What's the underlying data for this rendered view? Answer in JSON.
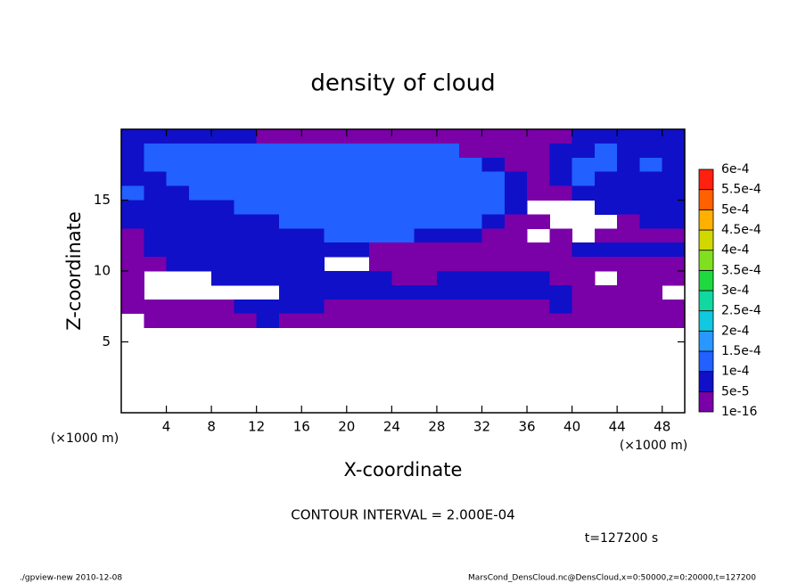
{
  "chart_data": {
    "type": "contour",
    "title": "density of cloud",
    "x_label": "X-coordinate",
    "y_label": "Z-coordinate",
    "x_unit": "(×1000 m)",
    "y_unit": "(×1000 m)",
    "xlim": [
      0,
      50
    ],
    "ylim": [
      0,
      20
    ],
    "xticks": [
      4,
      8,
      12,
      16,
      20,
      24,
      28,
      32,
      36,
      40,
      44,
      48
    ],
    "yticks": [
      5,
      10,
      15
    ],
    "levels": [
      {
        "value": 1e-16,
        "label": "1e-16"
      },
      {
        "value": 5e-05,
        "label": "5e-5"
      },
      {
        "value": 0.0001,
        "label": "1e-4"
      },
      {
        "value": 0.00015,
        "label": "1.5e-4"
      },
      {
        "value": 0.0002,
        "label": "2e-4"
      },
      {
        "value": 0.00025,
        "label": "2.5e-4"
      },
      {
        "value": 0.0003,
        "label": "3e-4"
      },
      {
        "value": 0.00035,
        "label": "3.5e-4"
      },
      {
        "value": 0.0004,
        "label": "4e-4"
      },
      {
        "value": 0.00045,
        "label": "4.5e-4"
      },
      {
        "value": 0.0005,
        "label": "5e-4"
      },
      {
        "value": 0.00055,
        "label": "5.5e-4"
      },
      {
        "value": 0.0006,
        "label": "6e-4"
      }
    ],
    "colors": [
      "#7a00a8",
      "#1010c8",
      "#2260ff",
      "#2898ff",
      "#10c8e0",
      "#10d8a0",
      "#20d840",
      "#80e020",
      "#d0d800",
      "#ffb000",
      "#ff6000",
      "#ff2010"
    ],
    "top_color": "#ff8c8c",
    "x": [
      1,
      3,
      5,
      7,
      9,
      11,
      13,
      15,
      17,
      19,
      21,
      23,
      25,
      27,
      29,
      31,
      33,
      35,
      37,
      39,
      41,
      43,
      45,
      47,
      49
    ],
    "z": [
      19.5,
      18.5,
      17.5,
      16.5,
      15.5,
      14.5,
      13.5,
      12.5,
      11.5,
      10.5,
      9.5,
      8.5,
      7.5,
      6.5
    ],
    "values": [
      [
        7e-05,
        7e-05,
        7e-05,
        7e-05,
        7e-05,
        7e-05,
        3e-05,
        3e-05,
        3e-05,
        3e-05,
        3e-05,
        3e-05,
        3e-05,
        3e-05,
        3e-05,
        3e-05,
        3e-05,
        3e-05,
        3e-05,
        3e-05,
        7e-05,
        7e-05,
        7e-05,
        7e-05,
        7e-05
      ],
      [
        7e-05,
        0.00012,
        0.00012,
        0.00012,
        0.00012,
        0.00012,
        0.00012,
        0.00012,
        0.00012,
        0.00012,
        0.00012,
        0.00012,
        0.00012,
        0.00012,
        0.00012,
        3e-05,
        3e-05,
        3e-05,
        3e-05,
        7e-05,
        7e-05,
        0.00012,
        7e-05,
        7e-05,
        7e-05
      ],
      [
        7e-05,
        0.00012,
        0.00012,
        0.00012,
        0.00012,
        0.00012,
        0.00012,
        0.00012,
        0.00012,
        0.00012,
        0.00012,
        0.00012,
        0.00012,
        0.00012,
        0.00012,
        0.00012,
        7e-05,
        3e-05,
        3e-05,
        7e-05,
        0.00012,
        0.00012,
        7e-05,
        0.00012,
        7e-05
      ],
      [
        7e-05,
        7e-05,
        0.00012,
        0.00012,
        0.00012,
        0.00012,
        0.00012,
        0.00012,
        0.00012,
        0.00012,
        0.00012,
        0.00012,
        0.00012,
        0.00012,
        0.00012,
        0.00012,
        0.00012,
        7e-05,
        3e-05,
        7e-05,
        0.00012,
        7e-05,
        7e-05,
        7e-05,
        7e-05
      ],
      [
        0.00012,
        7e-05,
        7e-05,
        0.00012,
        0.00012,
        0.00012,
        0.00012,
        0.00012,
        0.00012,
        0.00012,
        0.00012,
        0.00012,
        0.00012,
        0.00012,
        0.00012,
        0.00012,
        0.00012,
        7e-05,
        3e-05,
        3e-05,
        7e-05,
        7e-05,
        7e-05,
        7e-05,
        7e-05
      ],
      [
        7e-05,
        7e-05,
        7e-05,
        7e-05,
        7e-05,
        0.00012,
        0.00012,
        0.00012,
        0.00012,
        0.00012,
        0.00012,
        0.00012,
        0.00012,
        0.00012,
        0.00012,
        0.00012,
        0.00012,
        7e-05,
        null,
        null,
        null,
        7e-05,
        7e-05,
        7e-05,
        7e-05
      ],
      [
        7e-05,
        7e-05,
        7e-05,
        7e-05,
        7e-05,
        7e-05,
        7e-05,
        0.00012,
        0.00012,
        0.00012,
        0.00012,
        0.00012,
        0.00012,
        0.00012,
        0.00012,
        0.00012,
        7e-05,
        3e-05,
        3e-05,
        null,
        null,
        null,
        3e-05,
        7e-05,
        7e-05
      ],
      [
        3e-05,
        7e-05,
        7e-05,
        7e-05,
        7e-05,
        7e-05,
        7e-05,
        7e-05,
        7e-05,
        0.00012,
        0.00012,
        0.00012,
        0.00012,
        7e-05,
        7e-05,
        7e-05,
        3e-05,
        3e-05,
        null,
        3e-05,
        null,
        3e-05,
        3e-05,
        3e-05,
        3e-05
      ],
      [
        3e-05,
        7e-05,
        7e-05,
        7e-05,
        7e-05,
        7e-05,
        7e-05,
        7e-05,
        7e-05,
        7e-05,
        7e-05,
        3e-05,
        3e-05,
        3e-05,
        3e-05,
        3e-05,
        3e-05,
        3e-05,
        3e-05,
        3e-05,
        7e-05,
        7e-05,
        7e-05,
        7e-05,
        7e-05
      ],
      [
        3e-05,
        3e-05,
        7e-05,
        7e-05,
        7e-05,
        7e-05,
        7e-05,
        7e-05,
        7e-05,
        null,
        null,
        3e-05,
        3e-05,
        3e-05,
        3e-05,
        3e-05,
        3e-05,
        3e-05,
        3e-05,
        3e-05,
        3e-05,
        3e-05,
        3e-05,
        3e-05,
        3e-05
      ],
      [
        3e-05,
        null,
        null,
        null,
        7e-05,
        7e-05,
        7e-05,
        7e-05,
        7e-05,
        7e-05,
        7e-05,
        7e-05,
        3e-05,
        3e-05,
        7e-05,
        7e-05,
        7e-05,
        7e-05,
        7e-05,
        3e-05,
        3e-05,
        null,
        3e-05,
        3e-05,
        3e-05
      ],
      [
        3e-05,
        null,
        null,
        null,
        null,
        null,
        null,
        7e-05,
        7e-05,
        7e-05,
        7e-05,
        7e-05,
        7e-05,
        7e-05,
        7e-05,
        7e-05,
        7e-05,
        7e-05,
        7e-05,
        7e-05,
        3e-05,
        3e-05,
        3e-05,
        3e-05,
        null
      ],
      [
        3e-05,
        3e-05,
        3e-05,
        3e-05,
        3e-05,
        7e-05,
        7e-05,
        7e-05,
        7e-05,
        3e-05,
        3e-05,
        3e-05,
        3e-05,
        3e-05,
        3e-05,
        3e-05,
        3e-05,
        3e-05,
        3e-05,
        7e-05,
        3e-05,
        3e-05,
        3e-05,
        3e-05,
        3e-05
      ],
      [
        null,
        3e-05,
        3e-05,
        3e-05,
        3e-05,
        3e-05,
        7e-05,
        3e-05,
        3e-05,
        3e-05,
        3e-05,
        3e-05,
        3e-05,
        3e-05,
        3e-05,
        3e-05,
        3e-05,
        3e-05,
        3e-05,
        3e-05,
        3e-05,
        3e-05,
        3e-05,
        3e-05,
        3e-05
      ]
    ],
    "contour_interval": "CONTOUR INTERVAL = 2.000E-04",
    "time": "t=127200 s",
    "program": "./gpview-new  2010-12-08",
    "source": "MarsCond_DensCloud.nc@DensCloud,x=0:50000,z=0:20000,t=127200"
  }
}
